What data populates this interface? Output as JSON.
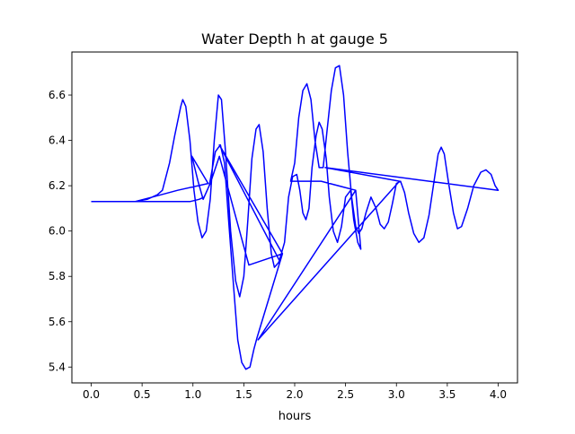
{
  "chart_data": {
    "type": "line",
    "title": "Water Depth h at gauge 5",
    "xlabel": "hours",
    "ylabel": "",
    "xlim": [
      -0.19,
      4.19
    ],
    "ylim": [
      5.33,
      6.79
    ],
    "xticks": [
      0.0,
      0.5,
      1.0,
      1.5,
      2.0,
      2.5,
      3.0,
      3.5,
      4.0
    ],
    "xtick_labels": [
      "0.0",
      "0.5",
      "1.0",
      "1.5",
      "2.0",
      "2.5",
      "3.0",
      "3.5",
      "4.0"
    ],
    "yticks": [
      5.4,
      5.6,
      5.8,
      6.0,
      6.2,
      6.4,
      6.6
    ],
    "ytick_labels": [
      "5.4",
      "5.6",
      "5.8",
      "6.0",
      "6.2",
      "6.4",
      "6.6"
    ],
    "grid": false,
    "legend": "none",
    "series": [
      {
        "color": "#0000ff",
        "points": [
          [
            0.0,
            6.13
          ],
          [
            0.25,
            6.13
          ],
          [
            0.43,
            6.13
          ],
          [
            0.55,
            6.14
          ],
          [
            0.65,
            6.16
          ],
          [
            0.7,
            6.18
          ],
          [
            0.77,
            6.3
          ],
          [
            0.82,
            6.42
          ],
          [
            0.88,
            6.55
          ],
          [
            0.9,
            6.58
          ],
          [
            0.93,
            6.55
          ],
          [
            0.97,
            6.4
          ],
          [
            1.01,
            6.18
          ],
          [
            1.05,
            6.04
          ],
          [
            1.09,
            5.97
          ],
          [
            1.13,
            6.0
          ],
          [
            1.17,
            6.14
          ],
          [
            1.21,
            6.4
          ],
          [
            1.25,
            6.6
          ],
          [
            1.28,
            6.58
          ],
          [
            1.32,
            6.35
          ],
          [
            1.37,
            6.0
          ],
          [
            1.42,
            5.78
          ],
          [
            1.46,
            5.71
          ],
          [
            1.5,
            5.8
          ],
          [
            1.54,
            6.05
          ],
          [
            1.58,
            6.32
          ],
          [
            1.62,
            6.45
          ],
          [
            1.65,
            6.47
          ],
          [
            1.69,
            6.35
          ],
          [
            1.73,
            6.1
          ],
          [
            1.77,
            5.9
          ],
          [
            1.8,
            5.84
          ],
          [
            1.84,
            5.86
          ],
          [
            1.88,
            5.9
          ],
          [
            1.55,
            5.85
          ],
          [
            1.41,
            6.08
          ],
          [
            1.26,
            6.33
          ],
          [
            1.17,
            6.21
          ],
          [
            1.11,
            6.15
          ],
          [
            1.06,
            6.14
          ],
          [
            0.97,
            6.13
          ],
          [
            0.8,
            6.13
          ],
          [
            0.6,
            6.13
          ],
          [
            0.43,
            6.13
          ],
          [
            0.6,
            6.15
          ],
          [
            0.85,
            6.18
          ],
          [
            1.15,
            6.21
          ],
          [
            0.99,
            6.33
          ],
          [
            1.05,
            6.22
          ],
          [
            1.1,
            6.14
          ],
          [
            1.16,
            6.2
          ],
          [
            1.22,
            6.35
          ],
          [
            1.27,
            6.38
          ],
          [
            1.31,
            6.3
          ],
          [
            1.35,
            6.05
          ],
          [
            1.4,
            5.75
          ],
          [
            1.44,
            5.52
          ],
          [
            1.48,
            5.42
          ],
          [
            1.52,
            5.39
          ],
          [
            1.56,
            5.4
          ],
          [
            1.6,
            5.48
          ],
          [
            1.63,
            5.53
          ],
          [
            1.88,
            5.9
          ],
          [
            1.26,
            6.38
          ],
          [
            1.85,
            5.87
          ],
          [
            1.9,
            5.95
          ],
          [
            1.94,
            6.15
          ],
          [
            1.98,
            6.24
          ],
          [
            2.02,
            6.25
          ],
          [
            2.05,
            6.18
          ],
          [
            2.08,
            6.08
          ],
          [
            2.11,
            6.05
          ],
          [
            2.14,
            6.1
          ],
          [
            2.17,
            6.28
          ],
          [
            2.21,
            6.42
          ],
          [
            2.24,
            6.48
          ],
          [
            2.27,
            6.45
          ],
          [
            2.31,
            6.32
          ],
          [
            2.34,
            6.15
          ],
          [
            2.38,
            6.0
          ],
          [
            2.42,
            5.95
          ],
          [
            2.46,
            6.02
          ],
          [
            2.5,
            6.15
          ],
          [
            2.55,
            6.18
          ],
          [
            2.58,
            6.05
          ],
          [
            2.62,
            5.95
          ],
          [
            2.65,
            5.92
          ],
          [
            2.6,
            6.18
          ],
          [
            2.26,
            6.22
          ],
          [
            1.96,
            6.22
          ],
          [
            2.0,
            6.3
          ],
          [
            2.04,
            6.5
          ],
          [
            2.08,
            6.62
          ],
          [
            2.12,
            6.65
          ],
          [
            2.16,
            6.58
          ],
          [
            2.2,
            6.4
          ],
          [
            2.24,
            6.28
          ],
          [
            2.28,
            6.28
          ],
          [
            2.32,
            6.45
          ],
          [
            2.36,
            6.62
          ],
          [
            2.4,
            6.72
          ],
          [
            2.44,
            6.73
          ],
          [
            2.48,
            6.6
          ],
          [
            2.52,
            6.35
          ],
          [
            2.56,
            6.15
          ],
          [
            2.6,
            6.02
          ],
          [
            2.63,
            5.99
          ],
          [
            2.66,
            6.01
          ],
          [
            2.7,
            6.08
          ],
          [
            2.75,
            6.15
          ],
          [
            2.8,
            6.1
          ],
          [
            2.84,
            6.03
          ],
          [
            2.88,
            6.01
          ],
          [
            2.92,
            6.04
          ],
          [
            2.96,
            6.12
          ],
          [
            3.0,
            6.21
          ],
          [
            3.04,
            6.22
          ],
          [
            3.08,
            6.17
          ],
          [
            3.12,
            6.08
          ],
          [
            3.17,
            5.99
          ],
          [
            3.22,
            5.95
          ],
          [
            3.27,
            5.97
          ],
          [
            3.32,
            6.07
          ],
          [
            3.37,
            6.22
          ],
          [
            3.41,
            6.34
          ],
          [
            3.44,
            6.37
          ],
          [
            3.47,
            6.34
          ],
          [
            3.51,
            6.22
          ],
          [
            3.56,
            6.08
          ],
          [
            3.6,
            6.01
          ],
          [
            3.64,
            6.02
          ],
          [
            3.7,
            6.1
          ],
          [
            3.76,
            6.2
          ],
          [
            3.83,
            6.26
          ],
          [
            3.88,
            6.27
          ],
          [
            3.93,
            6.25
          ],
          [
            3.97,
            6.2
          ],
          [
            4.0,
            6.18
          ],
          [
            2.3,
            6.28
          ],
          [
            3.03,
            6.22
          ],
          [
            1.64,
            5.52
          ],
          [
            2.6,
            6.18
          ]
        ]
      }
    ]
  }
}
